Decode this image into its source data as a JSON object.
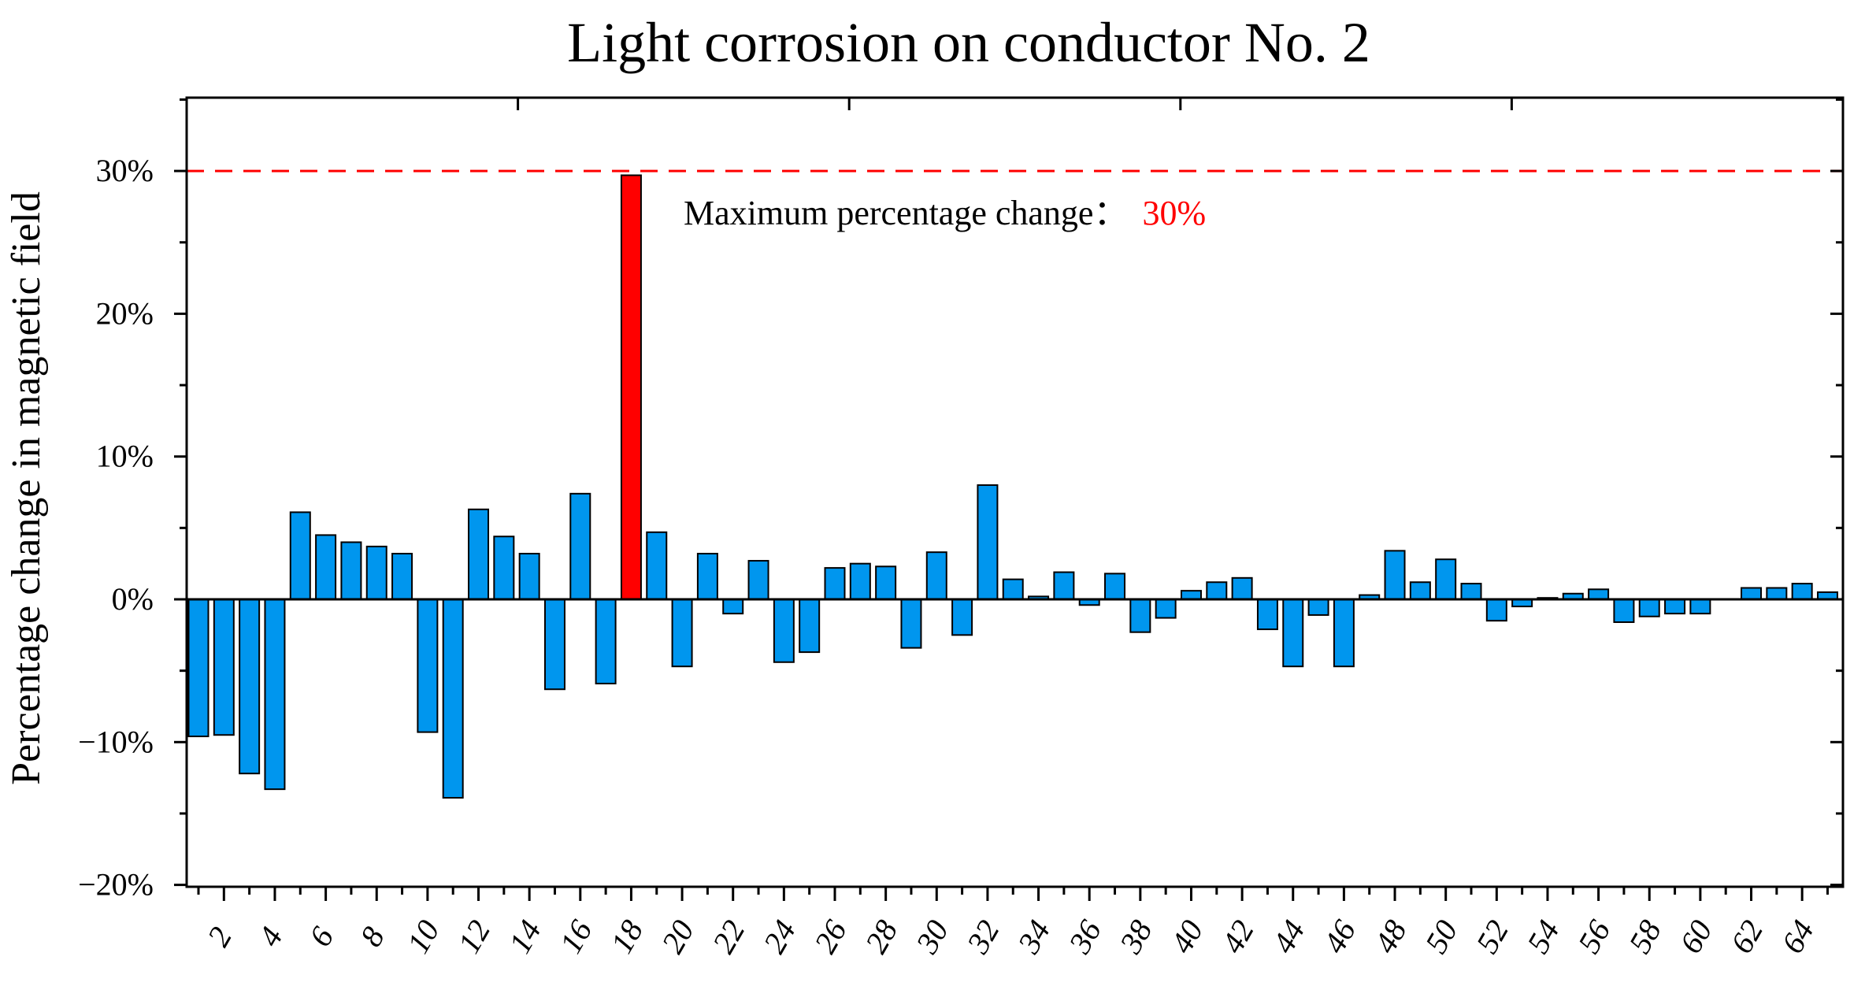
{
  "chart_data": {
    "type": "bar",
    "title": "Light corrosion on conductor No. 2",
    "xlabel": "",
    "ylabel": "Percentage change in magnetic field",
    "ylim": [
      -20,
      35
    ],
    "yticks": [
      -20,
      -10,
      0,
      10,
      20,
      30
    ],
    "ytick_labels": [
      "−20%",
      "−10%",
      "0%",
      "10%",
      "20%",
      "30%"
    ],
    "x": [
      1,
      2,
      3,
      4,
      5,
      6,
      7,
      8,
      9,
      10,
      11,
      12,
      13,
      14,
      15,
      16,
      17,
      18,
      19,
      20,
      21,
      22,
      23,
      24,
      25,
      26,
      27,
      28,
      29,
      30,
      31,
      32,
      33,
      34,
      35,
      36,
      37,
      38,
      39,
      40,
      41,
      42,
      43,
      44,
      45,
      46,
      47,
      48,
      49,
      50,
      51,
      52,
      53,
      54,
      55,
      56,
      57,
      58,
      59,
      60,
      61,
      62,
      63,
      64,
      65
    ],
    "xtick_labels": [
      "2",
      "4",
      "6",
      "8",
      "10",
      "12",
      "14",
      "16",
      "18",
      "20",
      "22",
      "24",
      "26",
      "28",
      "30",
      "32",
      "34",
      "36",
      "38",
      "40",
      "42",
      "44",
      "46",
      "48",
      "50",
      "52",
      "54",
      "56",
      "58",
      "60",
      "62",
      "64"
    ],
    "values": [
      -9.6,
      -9.5,
      -12.2,
      -13.3,
      6.1,
      4.5,
      4.0,
      3.7,
      3.2,
      -9.3,
      -13.9,
      6.3,
      4.4,
      3.2,
      -6.3,
      7.4,
      -5.9,
      29.7,
      4.7,
      -4.7,
      3.2,
      -1.0,
      2.7,
      -4.4,
      -3.7,
      2.2,
      2.5,
      2.3,
      -3.4,
      3.3,
      -2.5,
      8.0,
      1.4,
      0.2,
      1.9,
      -0.4,
      1.8,
      -2.3,
      -1.3,
      0.6,
      1.2,
      1.5,
      -2.1,
      -4.7,
      -1.1,
      -4.7,
      0.3,
      3.4,
      1.2,
      2.8,
      1.1,
      -1.5,
      -0.5,
      0.1,
      0.4,
      0.7,
      -1.6,
      -1.2,
      -1.0,
      -1.0,
      0.0,
      0.8,
      0.8,
      1.1,
      0.5
    ],
    "highlight_index": 17,
    "bar_color": "#0096ee",
    "highlight_color": "#ff0000",
    "reference_line": {
      "value": 30,
      "color": "#ff0000",
      "style": "dashed"
    },
    "annotation": {
      "text": "Maximum percentage change：",
      "value_text": "30%",
      "value_color": "#ff0000"
    }
  }
}
